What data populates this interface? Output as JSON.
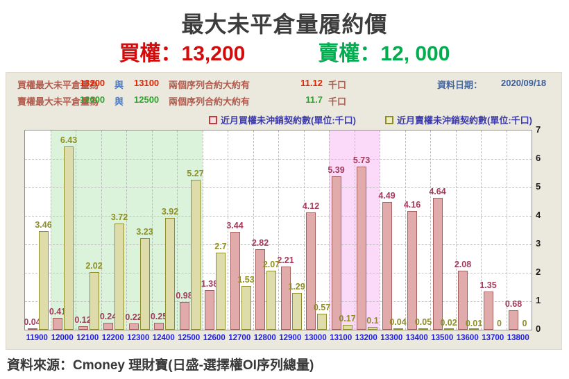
{
  "header": {
    "title": "最大未平倉量履約價",
    "call_strike_label": "買權：13,200",
    "put_strike_label": "賣權：12, 000"
  },
  "info_panel": {
    "rows": [
      {
        "label": "買權最大未平倉量為",
        "value1": "13200",
        "conjunction": "與",
        "value2": "13100",
        "tail": "兩個序列合約大約有",
        "amount": "11.12",
        "unit": "千口"
      },
      {
        "label": "賣權最大未平倉量為",
        "value1": "12000",
        "conjunction": "與",
        "value2": "12500",
        "tail": "兩個序列合約大約有",
        "amount": "11.7",
        "unit": "千口"
      }
    ],
    "date_label": "資料日期：",
    "date_value": "2020/09/18"
  },
  "chart_data": {
    "type": "bar",
    "title": "",
    "xlabel": "",
    "ylabel": "",
    "ylim": [
      0,
      7
    ],
    "yticks": [
      0,
      1,
      2,
      3,
      4,
      5,
      6,
      7
    ],
    "grid": true,
    "legend_position": "top",
    "categories": [
      "11900",
      "12000",
      "12100",
      "12200",
      "12300",
      "12400",
      "12500",
      "12600",
      "12700",
      "12800",
      "12900",
      "13000",
      "13100",
      "13200",
      "13300",
      "13400",
      "13500",
      "13600",
      "13700",
      "13800"
    ],
    "series": [
      {
        "name": "近月買權未沖銷契約數(單位:千口)",
        "fill": "#e0abaa",
        "border": "#a2615e",
        "label_color": "#a33b5b",
        "values": [
          0.04,
          0.41,
          0.12,
          0.24,
          0.22,
          0.25,
          0.98,
          1.38,
          3.44,
          2.82,
          2.21,
          4.12,
          5.39,
          5.73,
          4.49,
          4.16,
          4.64,
          2.08,
          1.35,
          0.68
        ]
      },
      {
        "name": "近月賣權未沖銷契約數(單位:千口)",
        "fill": "#dedcab",
        "border": "#8f8f2e",
        "label_color": "#8e8e22",
        "values": [
          3.46,
          6.43,
          2.02,
          3.72,
          3.23,
          3.92,
          5.27,
          2.7,
          1.53,
          2.07,
          1.29,
          0.57,
          0.17,
          0.1,
          0.04,
          0.05,
          0.02,
          0.01,
          0,
          0
        ]
      }
    ],
    "highlights": [
      {
        "from": "12000",
        "to": "12500",
        "color": "#daf3da"
      },
      {
        "from": "13100",
        "to": "13200",
        "color": "#fbd9f8"
      }
    ]
  },
  "footer": {
    "source": "資料來源：Cmoney 理財寶(日盛-選擇權OI序列總量)"
  }
}
